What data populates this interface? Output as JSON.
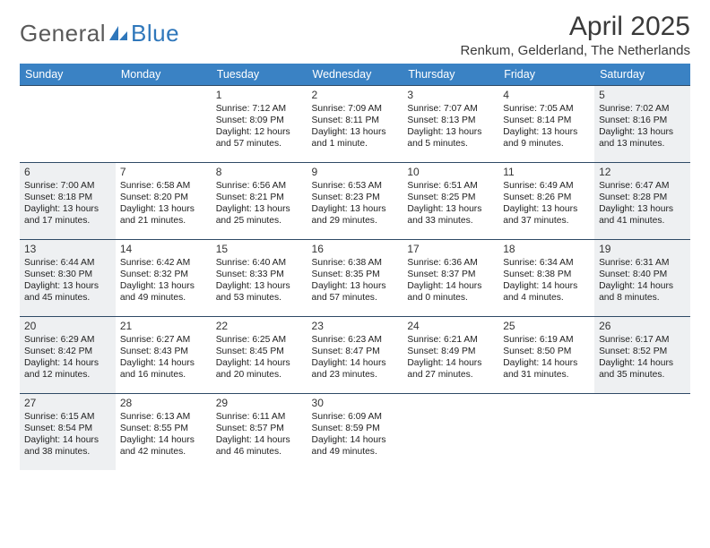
{
  "brand": {
    "word1": "General",
    "word2": "Blue"
  },
  "title": "April 2025",
  "location": "Renkum, Gelderland, The Netherlands",
  "colors": {
    "header_bg": "#3a82c4",
    "header_fg": "#ffffff",
    "cell_border": "#2f4a66",
    "shade_bg": "#eef0f2",
    "logo_blue": "#2f77bb",
    "text": "#222222"
  },
  "day_headers": [
    "Sunday",
    "Monday",
    "Tuesday",
    "Wednesday",
    "Thursday",
    "Friday",
    "Saturday"
  ],
  "weeks": [
    [
      null,
      null,
      {
        "n": "1",
        "sr": "Sunrise: 7:12 AM",
        "ss": "Sunset: 8:09 PM",
        "dl": "Daylight: 12 hours and 57 minutes.",
        "sh": false
      },
      {
        "n": "2",
        "sr": "Sunrise: 7:09 AM",
        "ss": "Sunset: 8:11 PM",
        "dl": "Daylight: 13 hours and 1 minute.",
        "sh": false
      },
      {
        "n": "3",
        "sr": "Sunrise: 7:07 AM",
        "ss": "Sunset: 8:13 PM",
        "dl": "Daylight: 13 hours and 5 minutes.",
        "sh": false
      },
      {
        "n": "4",
        "sr": "Sunrise: 7:05 AM",
        "ss": "Sunset: 8:14 PM",
        "dl": "Daylight: 13 hours and 9 minutes.",
        "sh": false
      },
      {
        "n": "5",
        "sr": "Sunrise: 7:02 AM",
        "ss": "Sunset: 8:16 PM",
        "dl": "Daylight: 13 hours and 13 minutes.",
        "sh": true
      }
    ],
    [
      {
        "n": "6",
        "sr": "Sunrise: 7:00 AM",
        "ss": "Sunset: 8:18 PM",
        "dl": "Daylight: 13 hours and 17 minutes.",
        "sh": true
      },
      {
        "n": "7",
        "sr": "Sunrise: 6:58 AM",
        "ss": "Sunset: 8:20 PM",
        "dl": "Daylight: 13 hours and 21 minutes.",
        "sh": false
      },
      {
        "n": "8",
        "sr": "Sunrise: 6:56 AM",
        "ss": "Sunset: 8:21 PM",
        "dl": "Daylight: 13 hours and 25 minutes.",
        "sh": false
      },
      {
        "n": "9",
        "sr": "Sunrise: 6:53 AM",
        "ss": "Sunset: 8:23 PM",
        "dl": "Daylight: 13 hours and 29 minutes.",
        "sh": false
      },
      {
        "n": "10",
        "sr": "Sunrise: 6:51 AM",
        "ss": "Sunset: 8:25 PM",
        "dl": "Daylight: 13 hours and 33 minutes.",
        "sh": false
      },
      {
        "n": "11",
        "sr": "Sunrise: 6:49 AM",
        "ss": "Sunset: 8:26 PM",
        "dl": "Daylight: 13 hours and 37 minutes.",
        "sh": false
      },
      {
        "n": "12",
        "sr": "Sunrise: 6:47 AM",
        "ss": "Sunset: 8:28 PM",
        "dl": "Daylight: 13 hours and 41 minutes.",
        "sh": true
      }
    ],
    [
      {
        "n": "13",
        "sr": "Sunrise: 6:44 AM",
        "ss": "Sunset: 8:30 PM",
        "dl": "Daylight: 13 hours and 45 minutes.",
        "sh": true
      },
      {
        "n": "14",
        "sr": "Sunrise: 6:42 AM",
        "ss": "Sunset: 8:32 PM",
        "dl": "Daylight: 13 hours and 49 minutes.",
        "sh": false
      },
      {
        "n": "15",
        "sr": "Sunrise: 6:40 AM",
        "ss": "Sunset: 8:33 PM",
        "dl": "Daylight: 13 hours and 53 minutes.",
        "sh": false
      },
      {
        "n": "16",
        "sr": "Sunrise: 6:38 AM",
        "ss": "Sunset: 8:35 PM",
        "dl": "Daylight: 13 hours and 57 minutes.",
        "sh": false
      },
      {
        "n": "17",
        "sr": "Sunrise: 6:36 AM",
        "ss": "Sunset: 8:37 PM",
        "dl": "Daylight: 14 hours and 0 minutes.",
        "sh": false
      },
      {
        "n": "18",
        "sr": "Sunrise: 6:34 AM",
        "ss": "Sunset: 8:38 PM",
        "dl": "Daylight: 14 hours and 4 minutes.",
        "sh": false
      },
      {
        "n": "19",
        "sr": "Sunrise: 6:31 AM",
        "ss": "Sunset: 8:40 PM",
        "dl": "Daylight: 14 hours and 8 minutes.",
        "sh": true
      }
    ],
    [
      {
        "n": "20",
        "sr": "Sunrise: 6:29 AM",
        "ss": "Sunset: 8:42 PM",
        "dl": "Daylight: 14 hours and 12 minutes.",
        "sh": true
      },
      {
        "n": "21",
        "sr": "Sunrise: 6:27 AM",
        "ss": "Sunset: 8:43 PM",
        "dl": "Daylight: 14 hours and 16 minutes.",
        "sh": false
      },
      {
        "n": "22",
        "sr": "Sunrise: 6:25 AM",
        "ss": "Sunset: 8:45 PM",
        "dl": "Daylight: 14 hours and 20 minutes.",
        "sh": false
      },
      {
        "n": "23",
        "sr": "Sunrise: 6:23 AM",
        "ss": "Sunset: 8:47 PM",
        "dl": "Daylight: 14 hours and 23 minutes.",
        "sh": false
      },
      {
        "n": "24",
        "sr": "Sunrise: 6:21 AM",
        "ss": "Sunset: 8:49 PM",
        "dl": "Daylight: 14 hours and 27 minutes.",
        "sh": false
      },
      {
        "n": "25",
        "sr": "Sunrise: 6:19 AM",
        "ss": "Sunset: 8:50 PM",
        "dl": "Daylight: 14 hours and 31 minutes.",
        "sh": false
      },
      {
        "n": "26",
        "sr": "Sunrise: 6:17 AM",
        "ss": "Sunset: 8:52 PM",
        "dl": "Daylight: 14 hours and 35 minutes.",
        "sh": true
      }
    ],
    [
      {
        "n": "27",
        "sr": "Sunrise: 6:15 AM",
        "ss": "Sunset: 8:54 PM",
        "dl": "Daylight: 14 hours and 38 minutes.",
        "sh": true
      },
      {
        "n": "28",
        "sr": "Sunrise: 6:13 AM",
        "ss": "Sunset: 8:55 PM",
        "dl": "Daylight: 14 hours and 42 minutes.",
        "sh": false
      },
      {
        "n": "29",
        "sr": "Sunrise: 6:11 AM",
        "ss": "Sunset: 8:57 PM",
        "dl": "Daylight: 14 hours and 46 minutes.",
        "sh": false
      },
      {
        "n": "30",
        "sr": "Sunrise: 6:09 AM",
        "ss": "Sunset: 8:59 PM",
        "dl": "Daylight: 14 hours and 49 minutes.",
        "sh": false
      },
      null,
      null,
      null
    ]
  ]
}
